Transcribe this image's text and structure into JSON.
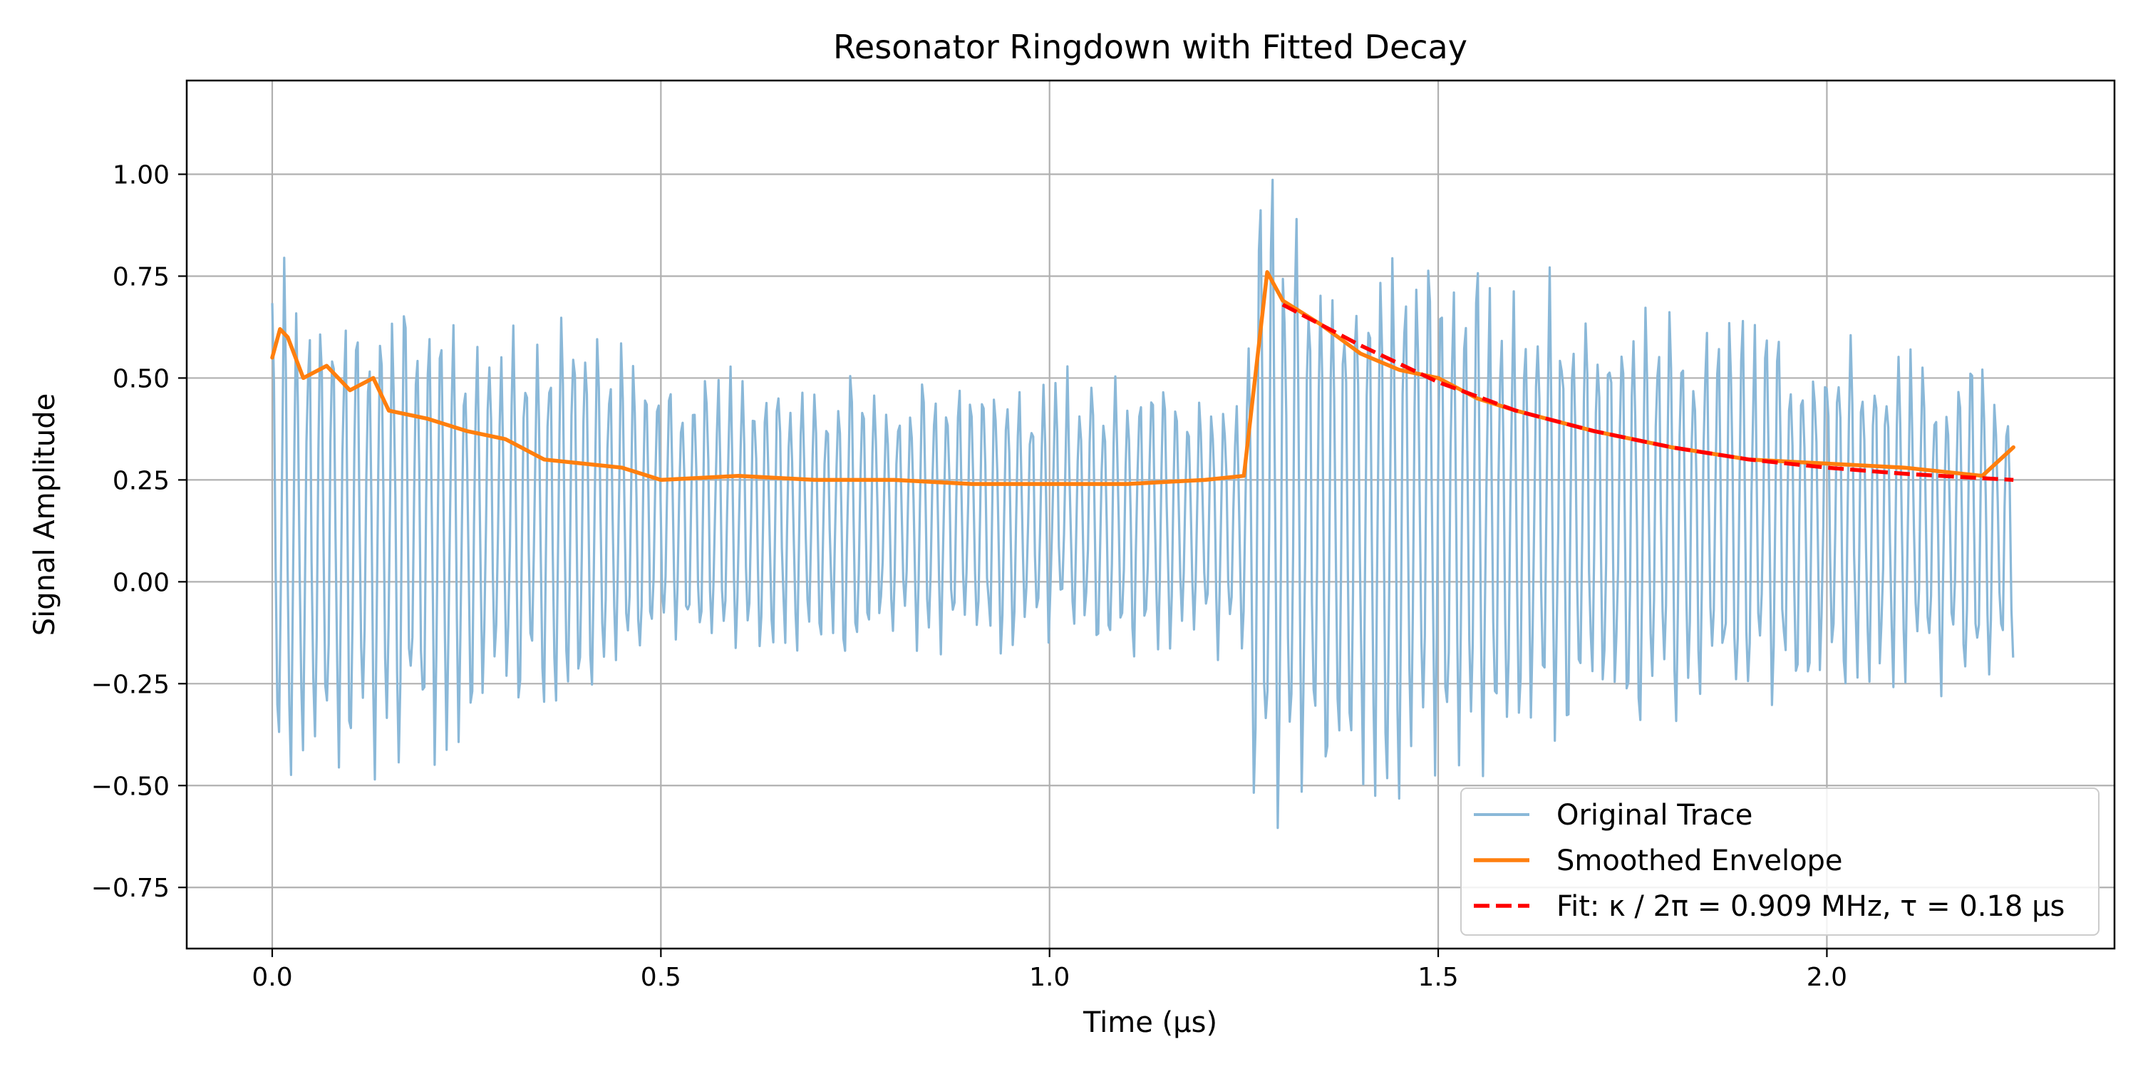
{
  "chart_data": {
    "type": "line",
    "title": "Resonator Ringdown with Fitted Decay",
    "xlabel": "Time (μs)",
    "ylabel": "Signal Amplitude",
    "xlim": [
      -0.11,
      2.37
    ],
    "ylim": [
      -0.9,
      1.23
    ],
    "grid": true,
    "legend_position": "lower right",
    "x_ticks": [
      0.0,
      0.5,
      1.0,
      1.5,
      2.0
    ],
    "x_tick_labels": [
      "0.0",
      "0.5",
      "1.0",
      "1.5",
      "2.0"
    ],
    "y_ticks": [
      1.0,
      0.75,
      0.5,
      0.25,
      0.0,
      -0.25,
      -0.5,
      -0.75
    ],
    "y_tick_labels": [
      "1.00",
      "0.75",
      "0.50",
      "0.25",
      "0.00",
      "−0.25",
      "−0.50",
      "−0.75"
    ],
    "series": [
      {
        "name": "Original Trace",
        "color": "#8ab8d8",
        "style": "solid",
        "x": [
          0.0,
          0.05,
          0.1,
          0.2,
          0.3,
          0.4,
          0.5,
          0.6,
          0.8,
          1.0,
          1.2,
          1.25,
          1.27,
          1.3,
          1.4,
          1.5,
          1.6,
          1.7,
          1.8,
          1.9,
          2.0,
          2.1,
          2.24
        ],
        "upper": [
          0.85,
          0.8,
          0.76,
          0.74,
          0.7,
          0.64,
          0.58,
          0.55,
          0.53,
          0.53,
          0.52,
          0.5,
          1.05,
          0.98,
          0.92,
          0.86,
          0.8,
          0.76,
          0.72,
          0.68,
          0.64,
          0.6,
          0.55
        ],
        "lower": [
          -0.6,
          -0.58,
          -0.52,
          -0.46,
          -0.4,
          -0.32,
          -0.26,
          -0.22,
          -0.2,
          -0.2,
          -0.2,
          -0.2,
          -0.76,
          -0.7,
          -0.6,
          -0.52,
          -0.46,
          -0.42,
          -0.38,
          -0.34,
          -0.32,
          -0.3,
          -0.28
        ],
        "period": 0.0155
      },
      {
        "name": "Smoothed Envelope",
        "color": "#ff7f0e",
        "style": "solid",
        "x": [
          0.0,
          0.01,
          0.02,
          0.04,
          0.07,
          0.1,
          0.13,
          0.15,
          0.2,
          0.25,
          0.3,
          0.35,
          0.4,
          0.45,
          0.5,
          0.6,
          0.7,
          0.8,
          0.9,
          1.0,
          1.1,
          1.2,
          1.25,
          1.28,
          1.3,
          1.35,
          1.4,
          1.45,
          1.5,
          1.55,
          1.6,
          1.7,
          1.8,
          1.9,
          2.0,
          2.1,
          2.2,
          2.24
        ],
        "y": [
          0.55,
          0.62,
          0.6,
          0.5,
          0.53,
          0.47,
          0.5,
          0.42,
          0.4,
          0.37,
          0.35,
          0.3,
          0.29,
          0.28,
          0.25,
          0.26,
          0.25,
          0.25,
          0.24,
          0.24,
          0.24,
          0.25,
          0.26,
          0.76,
          0.69,
          0.63,
          0.56,
          0.52,
          0.5,
          0.45,
          0.42,
          0.37,
          0.33,
          0.3,
          0.29,
          0.28,
          0.26,
          0.33
        ]
      },
      {
        "name": "Fit: κ / 2π = 0.909 MHz, τ = 0.18 μs",
        "color": "#ff0000",
        "style": "dashed",
        "x": [
          1.3,
          1.4,
          1.5,
          1.6,
          1.7,
          1.8,
          1.9,
          2.0,
          2.1,
          2.24
        ],
        "y": [
          0.68,
          0.58,
          0.49,
          0.42,
          0.37,
          0.33,
          0.3,
          0.28,
          0.265,
          0.25
        ]
      }
    ]
  }
}
